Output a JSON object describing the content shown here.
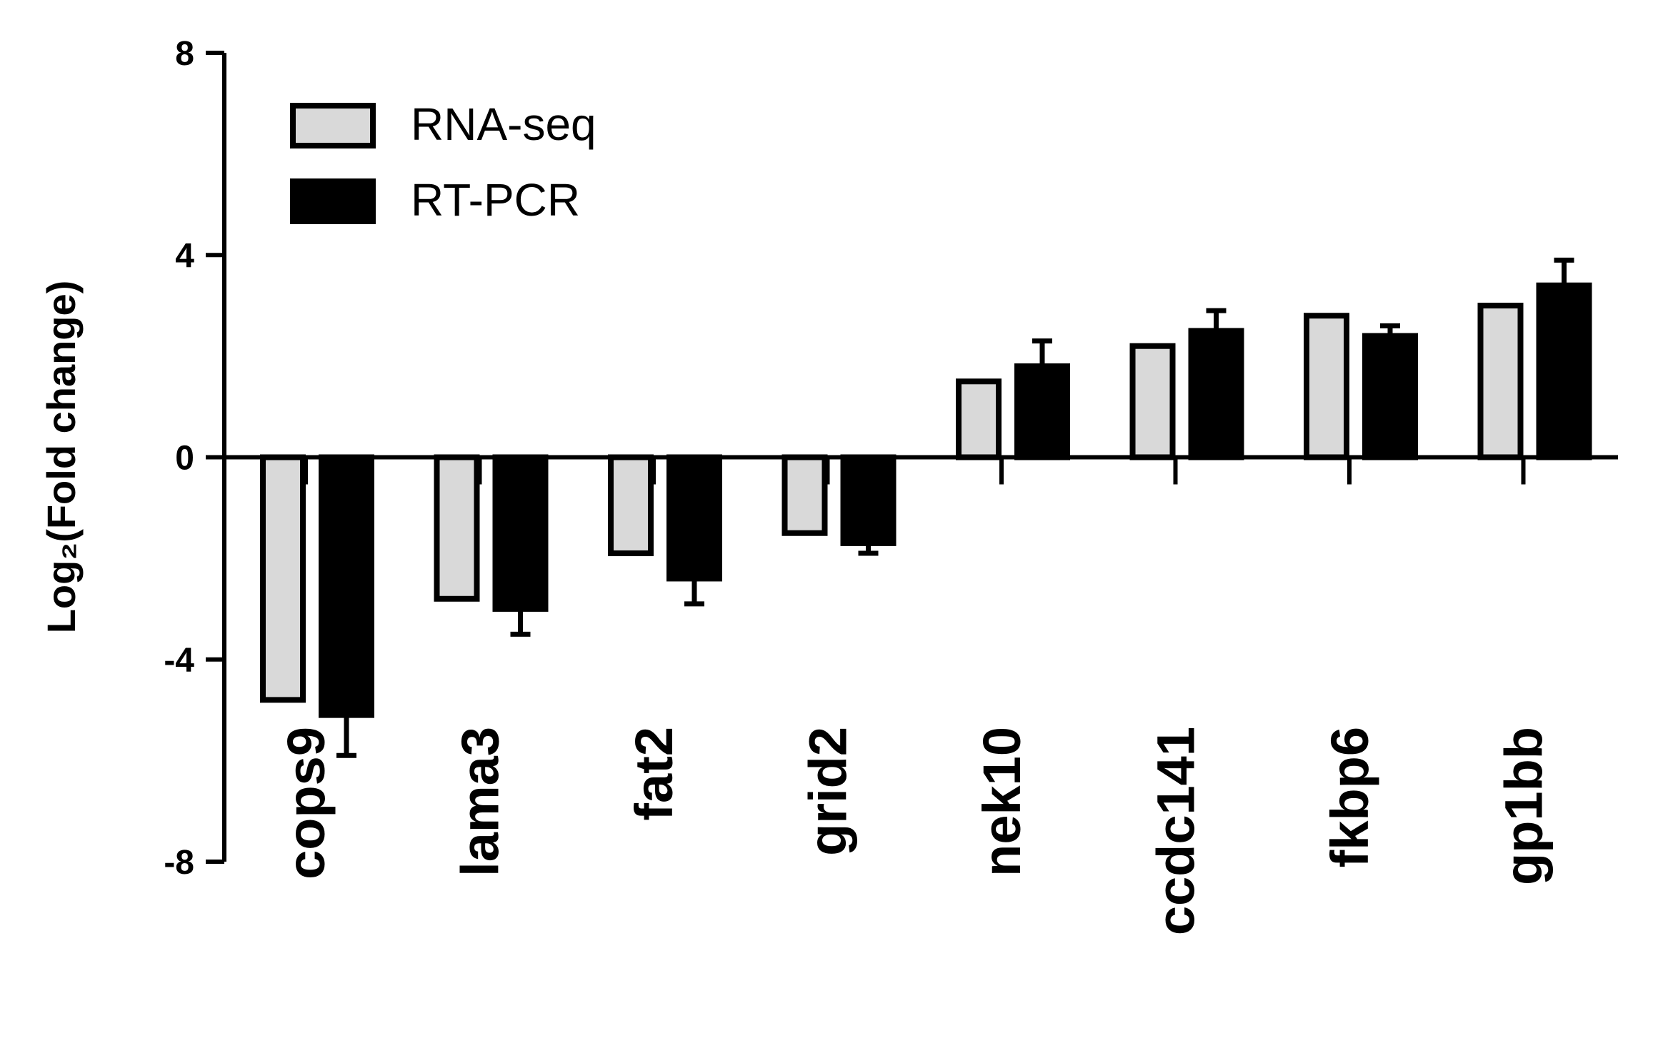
{
  "chart_data": {
    "type": "bar",
    "y_label": "Log₂(Fold change)",
    "categories": [
      "cops9",
      "lama3",
      "fat2",
      "grid2",
      "nek10",
      "ccdc141",
      "fkbp6",
      "gp1bb"
    ],
    "series": [
      {
        "name": "RNA-seq",
        "color": "#d9d9d9",
        "values": [
          -4.8,
          -2.8,
          -1.9,
          -1.5,
          1.5,
          2.2,
          2.8,
          3.0
        ]
      },
      {
        "name": "RT-PCR",
        "color": "#000000",
        "values": [
          -5.1,
          -3.0,
          -2.4,
          -1.7,
          1.8,
          2.5,
          2.4,
          3.4
        ],
        "errors": [
          0.8,
          0.5,
          0.5,
          0.2,
          0.5,
          0.4,
          0.2,
          0.5
        ]
      }
    ],
    "ylim": [
      -8,
      8
    ],
    "yticks": [
      -8,
      -4,
      0,
      4,
      8
    ],
    "legend": "top-left"
  }
}
